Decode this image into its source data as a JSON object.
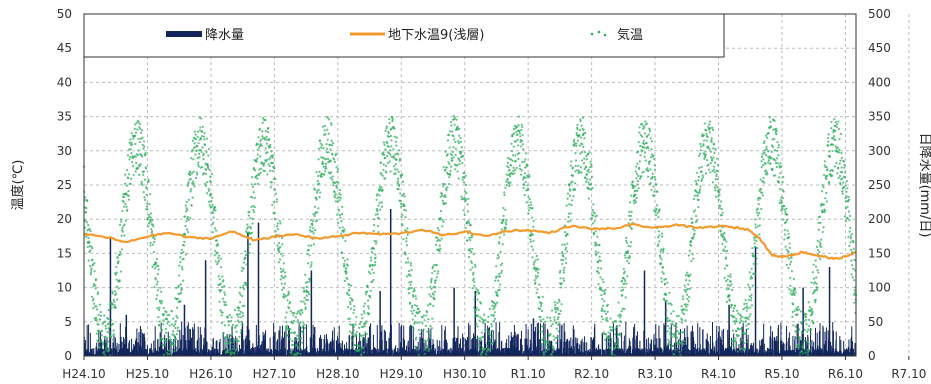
{
  "chart_data": {
    "type": "line",
    "title": "",
    "ylabel_left": "温度(℃)",
    "ylabel_right": "日降水量(mm/日)",
    "x_tick_labels": [
      "H24.10",
      "H25.10",
      "H26.10",
      "H27.10",
      "H28.10",
      "H29.10",
      "H30.10",
      "R1.10",
      "R2.10",
      "R3.10",
      "R4.10",
      "R5.10",
      "R6.10",
      "R7.10"
    ],
    "xlim_months": [
      0,
      146
    ],
    "ylim_left": [
      0,
      50
    ],
    "ylim_right": [
      0,
      500
    ],
    "yticks_left": [
      0,
      5,
      10,
      15,
      20,
      25,
      30,
      35,
      40,
      45,
      50
    ],
    "yticks_right": [
      0,
      50,
      100,
      150,
      200,
      250,
      300,
      350,
      400,
      450,
      500
    ],
    "grid": true,
    "legend_position": "top",
    "series": [
      {
        "name": "降水量",
        "type": "bar",
        "axis": "right",
        "color": "#12265e",
        "description_values_mm": {
          "typical_daily_range": [
            0,
            50
          ],
          "notable_peaks": [
            {
              "month": 5,
              "value": 175
            },
            {
              "month": 8,
              "value": 60
            },
            {
              "month": 19,
              "value": 75
            },
            {
              "month": 23,
              "value": 140
            },
            {
              "month": 31,
              "value": 180
            },
            {
              "month": 33,
              "value": 195
            },
            {
              "month": 43,
              "value": 125
            },
            {
              "month": 56,
              "value": 95
            },
            {
              "month": 58,
              "value": 215
            },
            {
              "month": 70,
              "value": 100
            },
            {
              "month": 74,
              "value": 95
            },
            {
              "month": 85,
              "value": 55
            },
            {
              "month": 106,
              "value": 125
            },
            {
              "month": 110,
              "value": 80
            },
            {
              "month": 122,
              "value": 75
            },
            {
              "month": 127,
              "value": 160
            },
            {
              "month": 136,
              "value": 100
            },
            {
              "month": 141,
              "value": 130
            }
          ]
        }
      },
      {
        "name": "地下水温9(浅層)",
        "type": "line",
        "axis": "left",
        "color": "#f59a2c",
        "x_months": [
          0,
          4,
          8,
          12,
          16,
          20,
          24,
          28,
          32,
          36,
          40,
          44,
          48,
          52,
          56,
          60,
          64,
          68,
          72,
          76,
          80,
          84,
          88,
          92,
          96,
          100,
          104,
          108,
          112,
          116,
          120,
          124,
          126,
          128,
          130,
          132,
          134,
          136,
          138,
          140,
          142,
          144,
          146
        ],
        "values": [
          17.8,
          17.4,
          16.6,
          17.5,
          18.0,
          17.3,
          17.2,
          18.2,
          17.0,
          17.4,
          17.8,
          17.2,
          17.5,
          18.0,
          17.8,
          17.9,
          18.5,
          17.6,
          18.2,
          17.5,
          18.3,
          18.4,
          18.0,
          19.0,
          18.6,
          18.6,
          19.2,
          18.7,
          19.2,
          18.7,
          19.0,
          18.7,
          18.4,
          17.0,
          14.8,
          14.5,
          14.8,
          15.2,
          14.8,
          14.5,
          14.2,
          14.5,
          15.2
        ]
      },
      {
        "name": "気温",
        "type": "scatter",
        "axis": "left",
        "color": "#2daf5e",
        "seasonal_pattern": {
          "peak_month_offset": 10,
          "trough_month_offset": 4,
          "typical_max": 31,
          "typical_min": 2,
          "scatter_range": [
            -3,
            3
          ]
        }
      }
    ]
  }
}
